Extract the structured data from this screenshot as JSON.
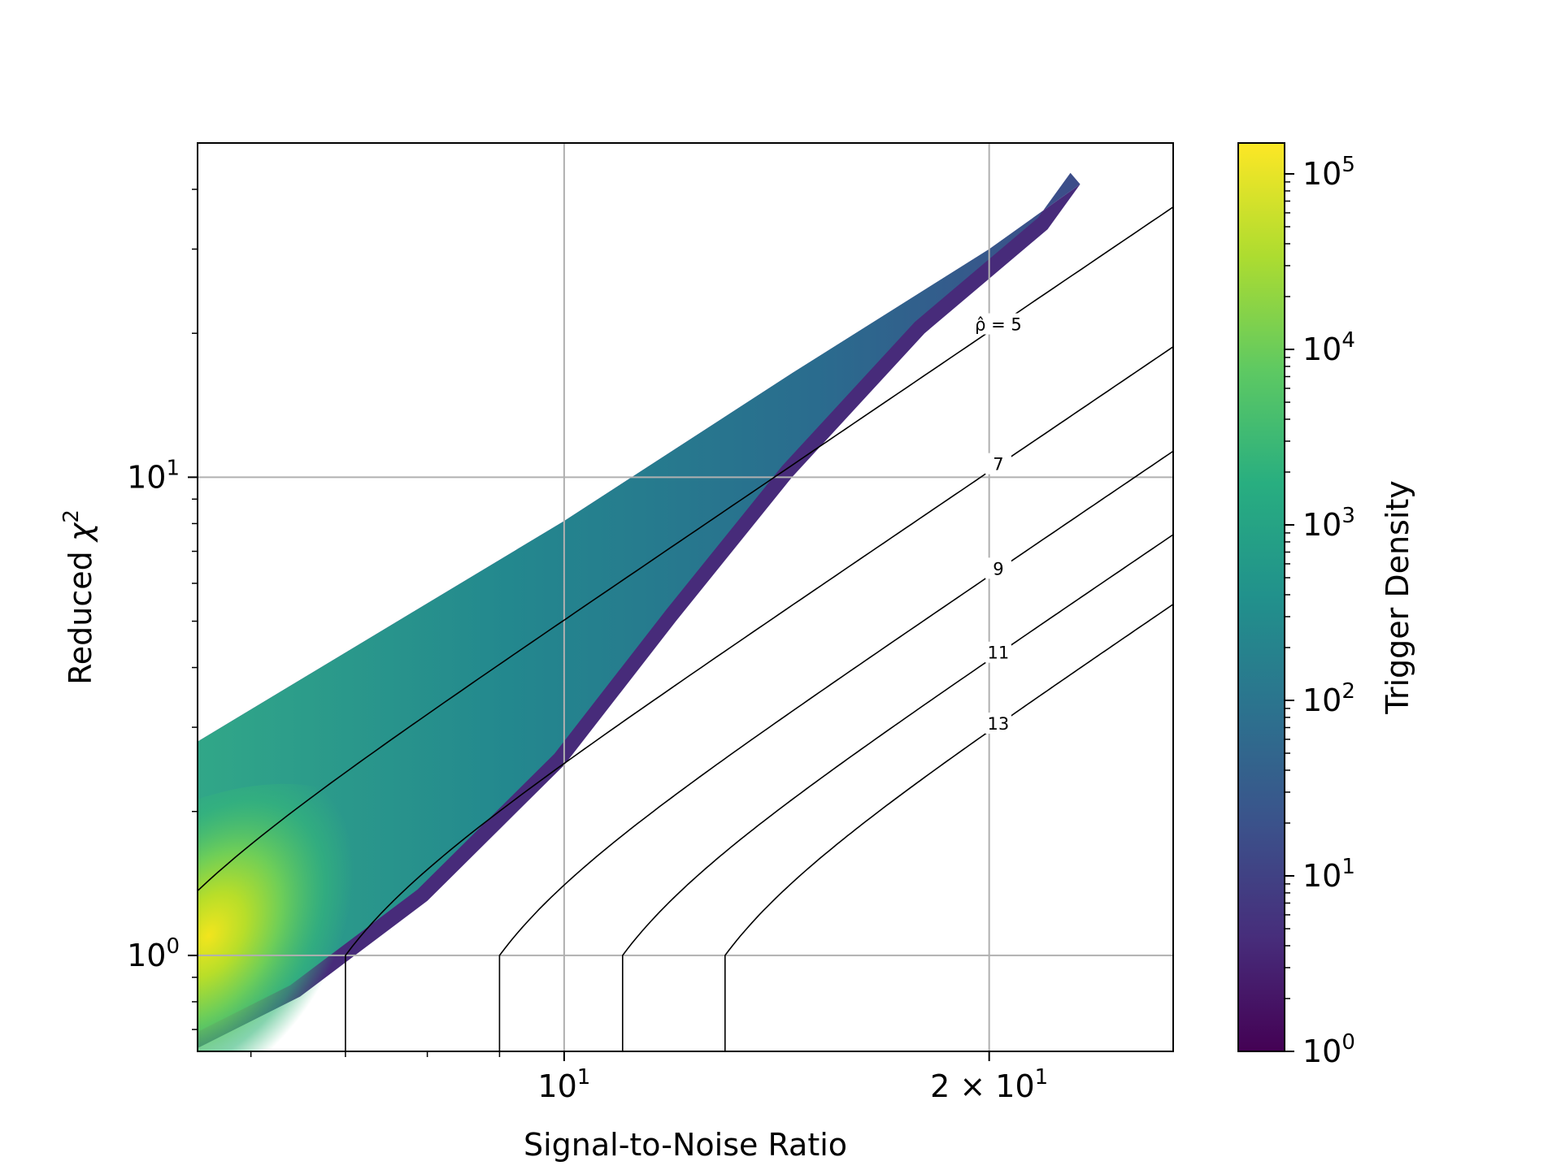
{
  "chart_data": {
    "type": "heatmap",
    "title": "",
    "xlabel": "Signal-to-Noise Ratio",
    "ylabel_prefix": "Reduced ",
    "ylabel_symbol": "χ",
    "ylabel_sup": "2",
    "x_scale": "log",
    "y_scale": "log",
    "xlim": [
      5.5,
      27
    ],
    "ylim": [
      0.63,
      50
    ],
    "grid": true,
    "x_ticks": [
      {
        "value": 10,
        "base": "10",
        "exp": "1",
        "prefix": ""
      },
      {
        "value": 20,
        "base": "10",
        "exp": "1",
        "prefix": "2 × "
      }
    ],
    "x_minor_ticks": [
      6,
      7,
      8,
      9,
      30
    ],
    "y_ticks": [
      {
        "value": 1,
        "base": "10",
        "exp": "0"
      },
      {
        "value": 10,
        "base": "10",
        "exp": "1"
      }
    ],
    "colorbar": {
      "label": "Trigger Density",
      "scale": "log",
      "range": [
        1,
        150000
      ],
      "colormap": "viridis",
      "ticks": [
        {
          "value": 1,
          "base": "10",
          "exp": "0"
        },
        {
          "value": 10,
          "base": "10",
          "exp": "1"
        },
        {
          "value": 100,
          "base": "10",
          "exp": "2"
        },
        {
          "value": 1000,
          "base": "10",
          "exp": "3"
        },
        {
          "value": 10000,
          "base": "10",
          "exp": "4"
        },
        {
          "value": 100000,
          "base": "10",
          "exp": "5"
        }
      ]
    },
    "density_region": {
      "upper_edge": [
        [
          5.5,
          2.8
        ],
        [
          10,
          8.1
        ],
        [
          14.5,
          16.5
        ],
        [
          20,
          30
        ],
        [
          23.2,
          41
        ]
      ],
      "lower_edge": [
        [
          5.5,
          0.64
        ],
        [
          6.5,
          0.82
        ],
        [
          8,
          1.3
        ],
        [
          10,
          2.5
        ],
        [
          12,
          5
        ],
        [
          14.5,
          10
        ],
        [
          18,
          20
        ],
        [
          22,
          33
        ],
        [
          23.2,
          41
        ]
      ],
      "peak": {
        "snr": 5.6,
        "chisq": 1.1,
        "density": 150000
      }
    },
    "contours": [
      {
        "label": "ρ̂ = 5",
        "rho": 5
      },
      {
        "label": "7",
        "rho": 7
      },
      {
        "label": "9",
        "rho": 9
      },
      {
        "label": "11",
        "rho": 11
      },
      {
        "label": "13",
        "rho": 13
      }
    ]
  }
}
